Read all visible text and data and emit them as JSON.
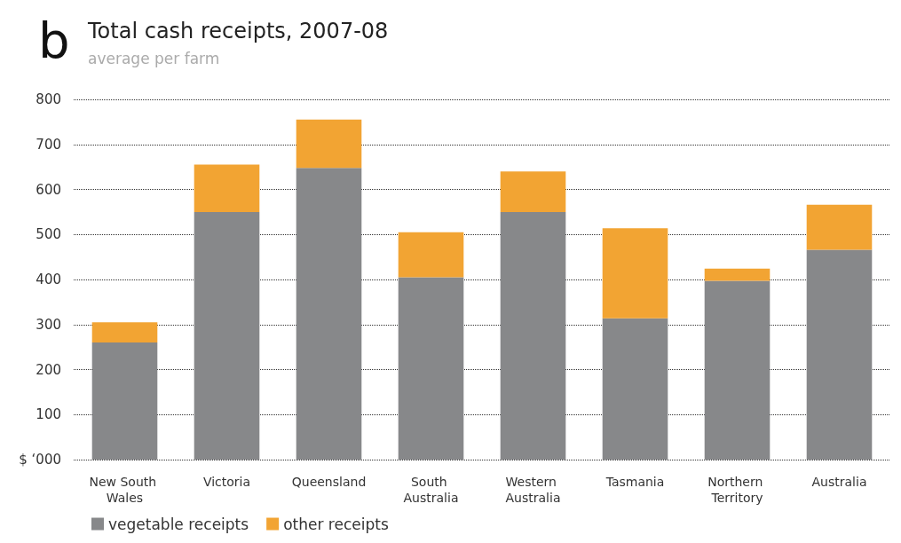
{
  "chart_data": {
    "type": "bar",
    "title": "Total cash receipts, 2007-08",
    "subtitle": "average per farm",
    "annotations": [
      "b"
    ],
    "categories": [
      "New South Wales",
      "Victoria",
      "Queensland",
      "South Australia",
      "Western Australia",
      "Tasmania",
      "Northern Territory",
      "Australia"
    ],
    "stacked": true,
    "series": [
      {
        "name": "vegetable receipts",
        "color": "#87888a",
        "values": [
          260,
          550,
          648,
          405,
          550,
          314,
          397,
          466
        ]
      },
      {
        "name": "other receipts",
        "color": "#f2a433",
        "values": [
          45,
          105,
          107,
          100,
          90,
          200,
          27,
          100
        ]
      }
    ],
    "ylim": [
      0,
      800
    ],
    "yticks": [
      {
        "value": 0,
        "label": "$ ‘000"
      },
      100,
      200,
      300,
      400,
      500,
      600,
      700,
      800
    ],
    "grid": "y",
    "legend": "bottom left"
  }
}
